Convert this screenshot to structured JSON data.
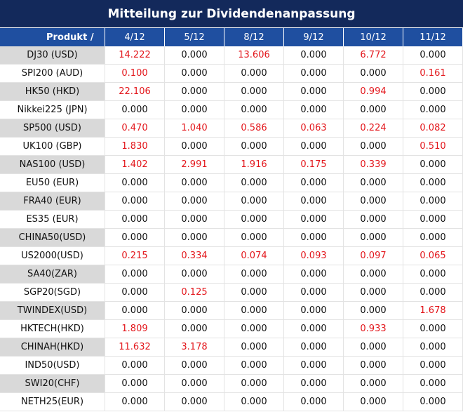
{
  "header": {
    "title": "Mitteilung zur Dividendenanpassung"
  },
  "table": {
    "columns": [
      "Produkt /",
      "4/12",
      "5/12",
      "8/12",
      "9/12",
      "10/12",
      "11/12"
    ],
    "rows": [
      {
        "name": "DJ30 (USD)",
        "values": [
          "14.222",
          "0.000",
          "13.606",
          "0.000",
          "6.772",
          "0.000"
        ]
      },
      {
        "name": "SPI200 (AUD)",
        "values": [
          "0.100",
          "0.000",
          "0.000",
          "0.000",
          "0.000",
          "0.161"
        ]
      },
      {
        "name": "HK50 (HKD)",
        "values": [
          "22.106",
          "0.000",
          "0.000",
          "0.000",
          "0.994",
          "0.000"
        ]
      },
      {
        "name": "Nikkei225 (JPN)",
        "values": [
          "0.000",
          "0.000",
          "0.000",
          "0.000",
          "0.000",
          "0.000"
        ]
      },
      {
        "name": "SP500 (USD)",
        "values": [
          "0.470",
          "1.040",
          "0.586",
          "0.063",
          "0.224",
          "0.082"
        ]
      },
      {
        "name": "UK100 (GBP)",
        "values": [
          "1.830",
          "0.000",
          "0.000",
          "0.000",
          "0.000",
          "0.510"
        ]
      },
      {
        "name": "NAS100 (USD)",
        "values": [
          "1.402",
          "2.991",
          "1.916",
          "0.175",
          "0.339",
          "0.000"
        ]
      },
      {
        "name": "EU50 (EUR)",
        "values": [
          "0.000",
          "0.000",
          "0.000",
          "0.000",
          "0.000",
          "0.000"
        ]
      },
      {
        "name": "FRA40 (EUR)",
        "values": [
          "0.000",
          "0.000",
          "0.000",
          "0.000",
          "0.000",
          "0.000"
        ]
      },
      {
        "name": "ES35 (EUR)",
        "values": [
          "0.000",
          "0.000",
          "0.000",
          "0.000",
          "0.000",
          "0.000"
        ]
      },
      {
        "name": "CHINA50(USD)",
        "values": [
          "0.000",
          "0.000",
          "0.000",
          "0.000",
          "0.000",
          "0.000"
        ]
      },
      {
        "name": "US2000(USD)",
        "values": [
          "0.215",
          "0.334",
          "0.074",
          "0.093",
          "0.097",
          "0.065"
        ]
      },
      {
        "name": "SA40(ZAR)",
        "values": [
          "0.000",
          "0.000",
          "0.000",
          "0.000",
          "0.000",
          "0.000"
        ]
      },
      {
        "name": "SGP20(SGD)",
        "values": [
          "0.000",
          "0.125",
          "0.000",
          "0.000",
          "0.000",
          "0.000"
        ]
      },
      {
        "name": "TWINDEX(USD)",
        "values": [
          "0.000",
          "0.000",
          "0.000",
          "0.000",
          "0.000",
          "1.678"
        ]
      },
      {
        "name": "HKTECH(HKD)",
        "values": [
          "1.809",
          "0.000",
          "0.000",
          "0.000",
          "0.933",
          "0.000"
        ]
      },
      {
        "name": "CHINAH(HKD)",
        "values": [
          "11.632",
          "3.178",
          "0.000",
          "0.000",
          "0.000",
          "0.000"
        ]
      },
      {
        "name": "IND50(USD)",
        "values": [
          "0.000",
          "0.000",
          "0.000",
          "0.000",
          "0.000",
          "0.000"
        ]
      },
      {
        "name": "SWI20(CHF)",
        "values": [
          "0.000",
          "0.000",
          "0.000",
          "0.000",
          "0.000",
          "0.000"
        ]
      },
      {
        "name": "NETH25(EUR)",
        "values": [
          "0.000",
          "0.000",
          "0.000",
          "0.000",
          "0.000",
          "0.000"
        ]
      }
    ]
  }
}
